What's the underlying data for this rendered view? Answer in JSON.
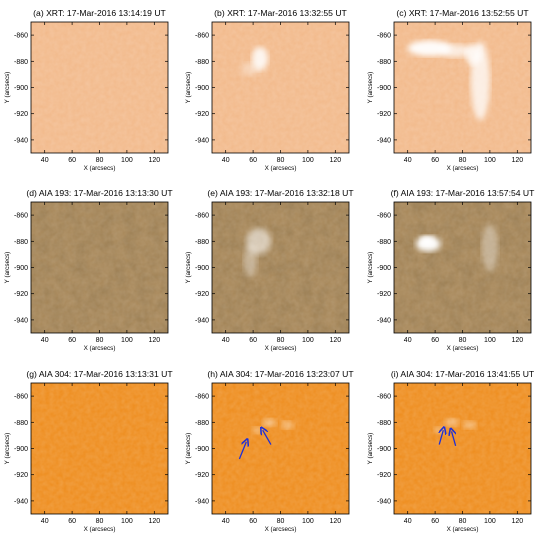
{
  "axes": {
    "xlabel": "X (arcsecs)",
    "ylabel": "Y (arcsecs)",
    "xticks": [
      "40",
      "60",
      "80",
      "100",
      "120"
    ],
    "yticks": [
      "-860",
      "-880",
      "-900",
      "-920",
      "-940"
    ]
  },
  "panels": [
    {
      "title": "(a) XRT: 17-Mar-2016 13:14:19 UT",
      "instrument": "XRT",
      "base_color": "#f2b98a",
      "bright": []
    },
    {
      "title": "(b) XRT: 17-Mar-2016 13:32:55 UT",
      "instrument": "XRT",
      "base_color": "#f2b98a",
      "bright": [
        "loop-top-knot"
      ]
    },
    {
      "title": "(c) XRT: 17-Mar-2016 13:52:55 UT",
      "instrument": "XRT",
      "base_color": "#f2b98a",
      "bright": [
        "horizontal-loop",
        "vertical-spire"
      ]
    },
    {
      "title": "(d) AIA 193: 17-Mar-2016 13:13:30 UT",
      "instrument": "AIA 193",
      "base_color": "#a8885a",
      "bright": []
    },
    {
      "title": "(e) AIA 193: 17-Mar-2016 13:32:18 UT",
      "instrument": "AIA 193",
      "base_color": "#a8885a",
      "bright": [
        "loop-system"
      ]
    },
    {
      "title": "(f) AIA 193: 17-Mar-2016 13:57:54 UT",
      "instrument": "AIA 193",
      "base_color": "#a8885a",
      "bright": [
        "blob",
        "loop-arch"
      ]
    },
    {
      "title": "(g) AIA 304: 17-Mar-2016 13:13:31 UT",
      "instrument": "AIA 304",
      "base_color": "#ee8c1c",
      "bright": []
    },
    {
      "title": "(h) AIA 304: 17-Mar-2016 13:23:07 UT",
      "instrument": "AIA 304",
      "base_color": "#ee8c1c",
      "bright": [
        "kernels"
      ],
      "arrows": 2
    },
    {
      "title": "(i) AIA 304: 17-Mar-2016 13:41:55 UT",
      "instrument": "AIA 304",
      "base_color": "#ee8c1c",
      "bright": [
        "kernels"
      ],
      "arrows": 2
    }
  ],
  "colors": {
    "arrow": "#1f2fd6",
    "frame": "#000000"
  }
}
